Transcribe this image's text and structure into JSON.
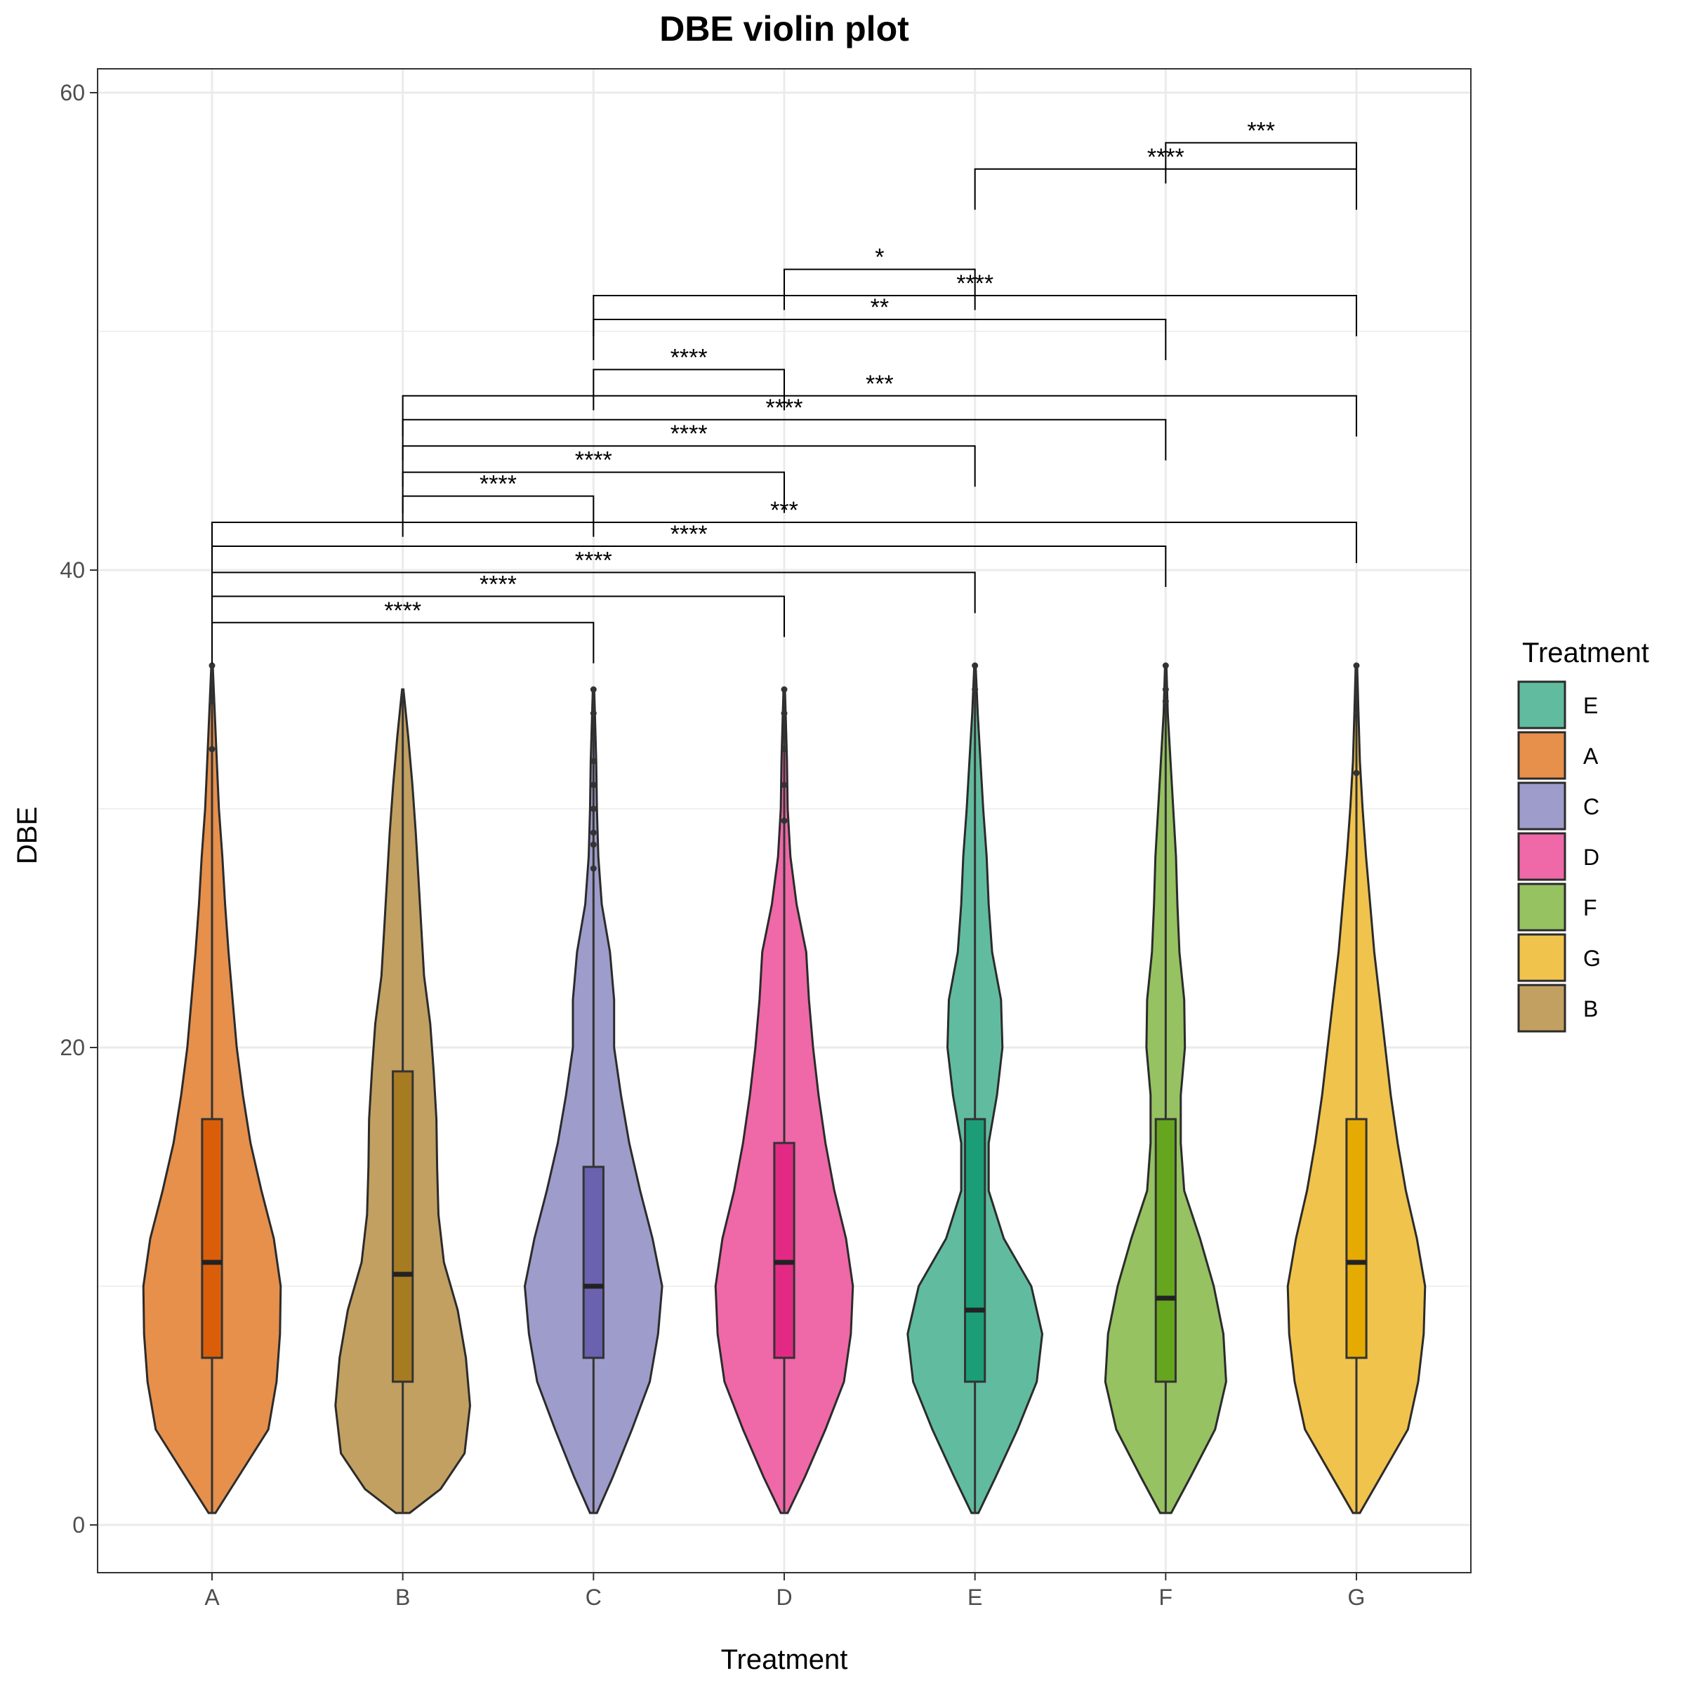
{
  "chart_data": {
    "type": "violin",
    "title": "DBE violin plot",
    "xlabel": "Treatment",
    "ylabel": "DBE",
    "ylim": [
      -2,
      61
    ],
    "y_ticks": [
      0,
      20,
      40,
      60
    ],
    "grid": true,
    "legend_position": "right",
    "categories": [
      "A",
      "B",
      "C",
      "D",
      "E",
      "F",
      "G"
    ],
    "colors": {
      "A": "#E6904C",
      "B": "#C2A061",
      "C": "#9E9CCB",
      "D": "#EF68A8",
      "E": "#61BC9F",
      "F": "#96C262",
      "G": "#F0C34D"
    },
    "box_colors": {
      "A": "#DA5E0A",
      "B": "#A77B22",
      "C": "#6A62AE",
      "D": "#E22A84",
      "E": "#1B9E77",
      "F": "#66A61E",
      "G": "#E6AB02"
    },
    "legend": {
      "title": "Treatment",
      "entries": [
        "E",
        "A",
        "C",
        "D",
        "F",
        "G",
        "B"
      ]
    },
    "series": [
      {
        "name": "A",
        "min": 0.5,
        "q1": 7,
        "median": 11,
        "q3": 17,
        "max": 36,
        "outliers": [
          32.5,
          34.5,
          36
        ],
        "density": [
          [
            0.5,
            0.05
          ],
          [
            2,
            0.38
          ],
          [
            4,
            0.82
          ],
          [
            6,
            0.94
          ],
          [
            8,
            0.99
          ],
          [
            10,
            1.0
          ],
          [
            12,
            0.9
          ],
          [
            14,
            0.72
          ],
          [
            16,
            0.56
          ],
          [
            18,
            0.45
          ],
          [
            20,
            0.36
          ],
          [
            22,
            0.3
          ],
          [
            24,
            0.24
          ],
          [
            26,
            0.19
          ],
          [
            28,
            0.15
          ],
          [
            30,
            0.1
          ],
          [
            32,
            0.07
          ],
          [
            34,
            0.04
          ],
          [
            36,
            0.01
          ]
        ]
      },
      {
        "name": "B",
        "min": 0.5,
        "q1": 6,
        "median": 10.5,
        "q3": 19,
        "max": 35,
        "outliers": [],
        "density": [
          [
            0.5,
            0.1
          ],
          [
            1.5,
            0.55
          ],
          [
            3,
            0.9
          ],
          [
            5,
            0.98
          ],
          [
            7,
            0.92
          ],
          [
            9,
            0.8
          ],
          [
            11,
            0.6
          ],
          [
            13,
            0.52
          ],
          [
            15,
            0.5
          ],
          [
            17,
            0.49
          ],
          [
            19,
            0.45
          ],
          [
            21,
            0.4
          ],
          [
            23,
            0.31
          ],
          [
            25,
            0.27
          ],
          [
            27,
            0.23
          ],
          [
            29,
            0.19
          ],
          [
            31,
            0.14
          ],
          [
            33,
            0.08
          ],
          [
            35,
            0.01
          ]
        ]
      },
      {
        "name": "C",
        "min": 0.5,
        "q1": 7,
        "median": 10,
        "q3": 15,
        "max": 35,
        "outliers": [
          27.5,
          28.5,
          29,
          30,
          31,
          32,
          33,
          34,
          35
        ],
        "density": [
          [
            0.5,
            0.05
          ],
          [
            2,
            0.28
          ],
          [
            4,
            0.56
          ],
          [
            6,
            0.82
          ],
          [
            8,
            0.94
          ],
          [
            10,
            1.0
          ],
          [
            12,
            0.86
          ],
          [
            14,
            0.68
          ],
          [
            16,
            0.52
          ],
          [
            18,
            0.4
          ],
          [
            20,
            0.3
          ],
          [
            22,
            0.3
          ],
          [
            24,
            0.24
          ],
          [
            26,
            0.12
          ],
          [
            28,
            0.07
          ],
          [
            30,
            0.05
          ],
          [
            32,
            0.04
          ],
          [
            34,
            0.02
          ],
          [
            35,
            0.01
          ]
        ]
      },
      {
        "name": "D",
        "min": 0.5,
        "q1": 7,
        "median": 11,
        "q3": 16,
        "max": 35,
        "outliers": [
          29.5,
          31,
          32.5,
          34,
          35
        ],
        "density": [
          [
            0.5,
            0.05
          ],
          [
            2,
            0.3
          ],
          [
            4,
            0.6
          ],
          [
            6,
            0.87
          ],
          [
            8,
            0.97
          ],
          [
            10,
            1.0
          ],
          [
            12,
            0.9
          ],
          [
            14,
            0.73
          ],
          [
            16,
            0.6
          ],
          [
            18,
            0.5
          ],
          [
            20,
            0.42
          ],
          [
            22,
            0.36
          ],
          [
            24,
            0.32
          ],
          [
            26,
            0.18
          ],
          [
            28,
            0.09
          ],
          [
            30,
            0.05
          ],
          [
            32,
            0.04
          ],
          [
            34,
            0.02
          ],
          [
            35,
            0.01
          ]
        ]
      },
      {
        "name": "E",
        "min": 0.5,
        "q1": 6,
        "median": 9,
        "q3": 17,
        "max": 36,
        "outliers": [
          35,
          36
        ],
        "density": [
          [
            0.5,
            0.05
          ],
          [
            2,
            0.3
          ],
          [
            4,
            0.62
          ],
          [
            6,
            0.9
          ],
          [
            8,
            0.98
          ],
          [
            10,
            0.82
          ],
          [
            12,
            0.42
          ],
          [
            14,
            0.2
          ],
          [
            16,
            0.2
          ],
          [
            18,
            0.32
          ],
          [
            20,
            0.4
          ],
          [
            22,
            0.38
          ],
          [
            24,
            0.25
          ],
          [
            26,
            0.2
          ],
          [
            28,
            0.17
          ],
          [
            30,
            0.12
          ],
          [
            32,
            0.08
          ],
          [
            34,
            0.04
          ],
          [
            36,
            0.01
          ]
        ]
      },
      {
        "name": "F",
        "min": 0.5,
        "q1": 6,
        "median": 9.5,
        "q3": 17,
        "max": 36,
        "outliers": [
          34.5,
          35,
          36
        ],
        "density": [
          [
            0.5,
            0.08
          ],
          [
            2,
            0.36
          ],
          [
            4,
            0.72
          ],
          [
            6,
            0.88
          ],
          [
            8,
            0.84
          ],
          [
            10,
            0.7
          ],
          [
            12,
            0.5
          ],
          [
            14,
            0.27
          ],
          [
            16,
            0.22
          ],
          [
            18,
            0.22
          ],
          [
            20,
            0.28
          ],
          [
            22,
            0.27
          ],
          [
            24,
            0.2
          ],
          [
            26,
            0.17
          ],
          [
            28,
            0.15
          ],
          [
            30,
            0.11
          ],
          [
            32,
            0.07
          ],
          [
            34,
            0.03
          ],
          [
            36,
            0.01
          ]
        ]
      },
      {
        "name": "G",
        "min": 0.5,
        "q1": 7,
        "median": 11,
        "q3": 17,
        "max": 36,
        "outliers": [
          31.5,
          34,
          36
        ],
        "density": [
          [
            0.5,
            0.05
          ],
          [
            2,
            0.35
          ],
          [
            4,
            0.75
          ],
          [
            6,
            0.9
          ],
          [
            8,
            0.98
          ],
          [
            10,
            1.0
          ],
          [
            12,
            0.88
          ],
          [
            14,
            0.72
          ],
          [
            16,
            0.6
          ],
          [
            18,
            0.5
          ],
          [
            20,
            0.42
          ],
          [
            22,
            0.34
          ],
          [
            24,
            0.26
          ],
          [
            26,
            0.2
          ],
          [
            28,
            0.14
          ],
          [
            30,
            0.09
          ],
          [
            32,
            0.05
          ],
          [
            34,
            0.03
          ],
          [
            36,
            0.01
          ]
        ]
      }
    ],
    "comparisons": [
      {
        "group1": "A",
        "group2": "C",
        "y": 37.8,
        "label": "****"
      },
      {
        "group1": "A",
        "group2": "D",
        "y": 38.9,
        "label": "****"
      },
      {
        "group1": "A",
        "group2": "E",
        "y": 39.9,
        "label": "****"
      },
      {
        "group1": "A",
        "group2": "F",
        "y": 41.0,
        "label": "****"
      },
      {
        "group1": "A",
        "group2": "G",
        "y": 42.0,
        "label": "***"
      },
      {
        "group1": "B",
        "group2": "C",
        "y": 43.1,
        "label": "****"
      },
      {
        "group1": "B",
        "group2": "D",
        "y": 44.1,
        "label": "****"
      },
      {
        "group1": "B",
        "group2": "E",
        "y": 45.2,
        "label": "****"
      },
      {
        "group1": "B",
        "group2": "F",
        "y": 46.3,
        "label": "****"
      },
      {
        "group1": "B",
        "group2": "G",
        "y": 47.3,
        "label": "***"
      },
      {
        "group1": "C",
        "group2": "D",
        "y": 48.4,
        "label": "****"
      },
      {
        "group1": "C",
        "group2": "F",
        "y": 50.5,
        "label": "**"
      },
      {
        "group1": "C",
        "group2": "G",
        "y": 51.5,
        "label": "****"
      },
      {
        "group1": "D",
        "group2": "E",
        "y": 52.6,
        "label": "*"
      },
      {
        "group1": "E",
        "group2": "G",
        "y": 56.8,
        "label": "****"
      },
      {
        "group1": "F",
        "group2": "G",
        "y": 57.9,
        "label": "***"
      }
    ]
  }
}
